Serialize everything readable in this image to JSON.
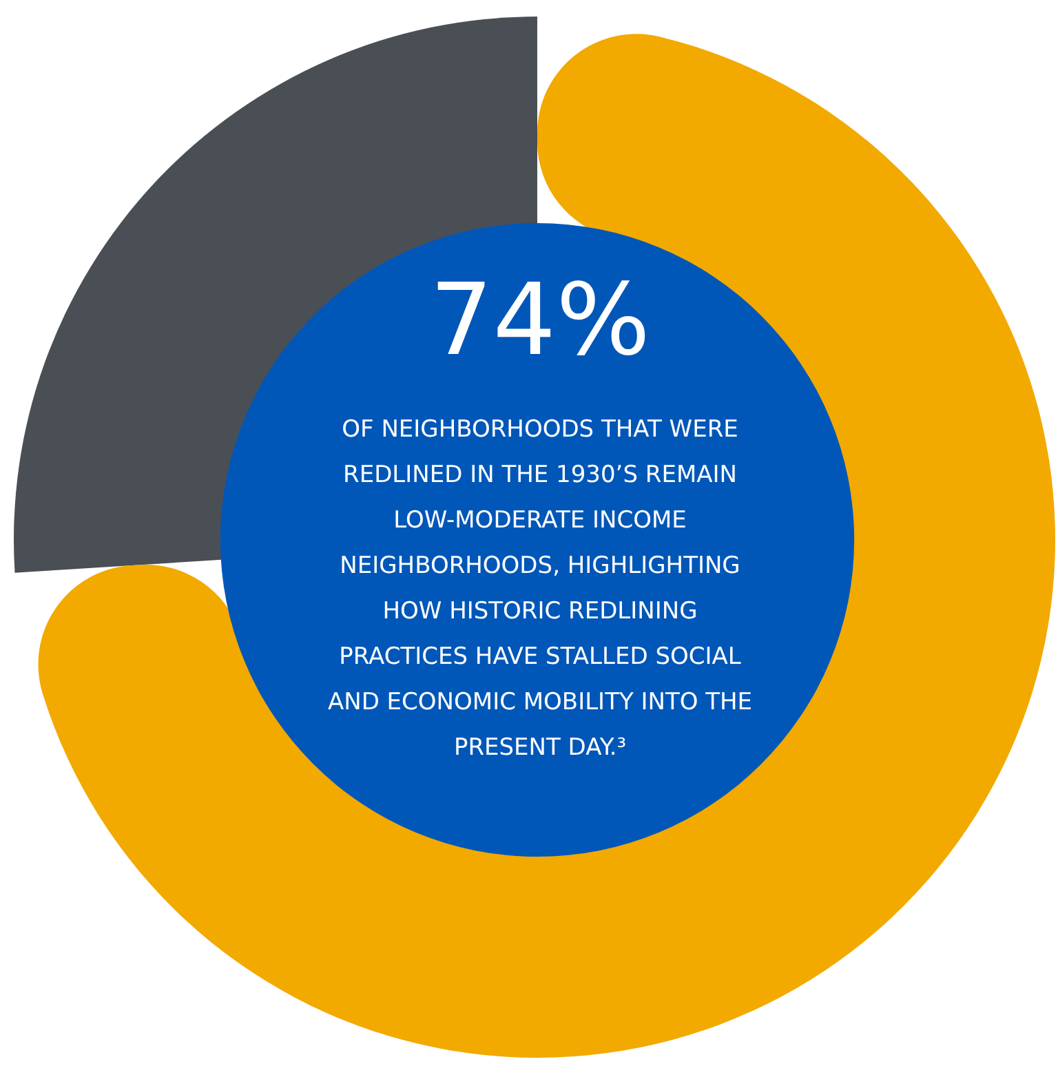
{
  "chart_data": {
    "type": "donut",
    "title": "74%",
    "categories": [
      null,
      null
    ],
    "values": [
      74,
      26
    ],
    "colors": [
      "#f2a900",
      "#4a4f55"
    ],
    "annotations": [
      "OF NEIGHBORHOODS THAT WERE REDLINED IN THE 1930’S REMAIN LOW-MODERATE INCOME NEIGHBORHOODS, HIGHLIGHTING HOW HISTORIC REDLINING PRACTICES HAVE STALLED SOCIAL AND ECONOMIC MOBILITY INTO THE PRESENT DAY.³"
    ]
  }
}
